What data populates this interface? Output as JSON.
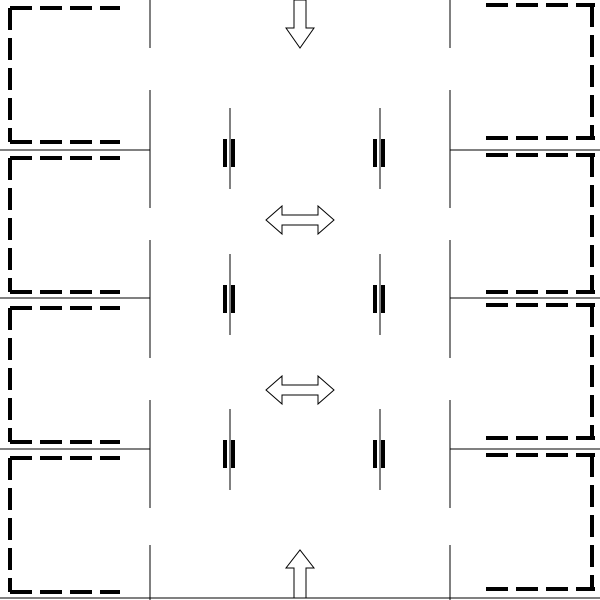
{
  "diagram": {
    "background": "#ffffff",
    "stroke": "#000000",
    "arrow_fill": "#ffffff",
    "rooms": [
      {
        "side": "left",
        "index": 1
      },
      {
        "side": "left",
        "index": 2
      },
      {
        "side": "left",
        "index": 3
      },
      {
        "side": "left",
        "index": 4
      },
      {
        "side": "right",
        "index": 1
      },
      {
        "side": "right",
        "index": 2
      },
      {
        "side": "right",
        "index": 3
      },
      {
        "side": "right",
        "index": 4
      }
    ],
    "arrows": [
      {
        "kind": "entry-arrow-down",
        "icon": "down-arrow-icon"
      },
      {
        "kind": "two-way-arrow",
        "icon": "double-arrow-icon"
      },
      {
        "kind": "two-way-arrow",
        "icon": "double-arrow-icon"
      },
      {
        "kind": "entry-arrow-up",
        "icon": "up-arrow-icon"
      }
    ],
    "door_symbols": 6,
    "door_icon": "double-bar-door-icon"
  }
}
